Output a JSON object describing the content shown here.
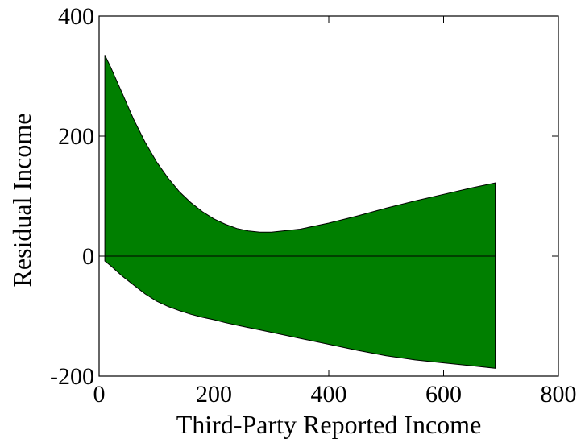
{
  "chart_data": {
    "type": "area",
    "xlabel": "Third-Party Reported Income",
    "ylabel": "Residual Income",
    "xlim": [
      0,
      800
    ],
    "ylim": [
      -200,
      400
    ],
    "xticks": [
      "0",
      "200",
      "400",
      "600",
      "800"
    ],
    "yticks": [
      "-200",
      "0",
      "200",
      "400"
    ],
    "grid": false,
    "fill_color": "#007f00",
    "zero_line": true,
    "band": {
      "x": [
        10,
        20,
        40,
        60,
        80,
        100,
        120,
        140,
        160,
        180,
        200,
        220,
        240,
        260,
        280,
        300,
        350,
        400,
        450,
        500,
        550,
        600,
        650,
        690
      ],
      "upper": [
        335,
        315,
        272,
        228,
        190,
        157,
        130,
        107,
        89,
        74,
        62,
        53,
        46,
        42,
        40,
        40,
        45,
        55,
        67,
        80,
        92,
        103,
        114,
        122
      ],
      "lower": [
        -8,
        -16,
        -33,
        -48,
        -63,
        -75,
        -84,
        -91,
        -97,
        -102,
        -106,
        -111,
        -115,
        -119,
        -123,
        -127,
        -137,
        -147,
        -157,
        -166,
        -173,
        -178,
        -183,
        -187
      ]
    }
  }
}
